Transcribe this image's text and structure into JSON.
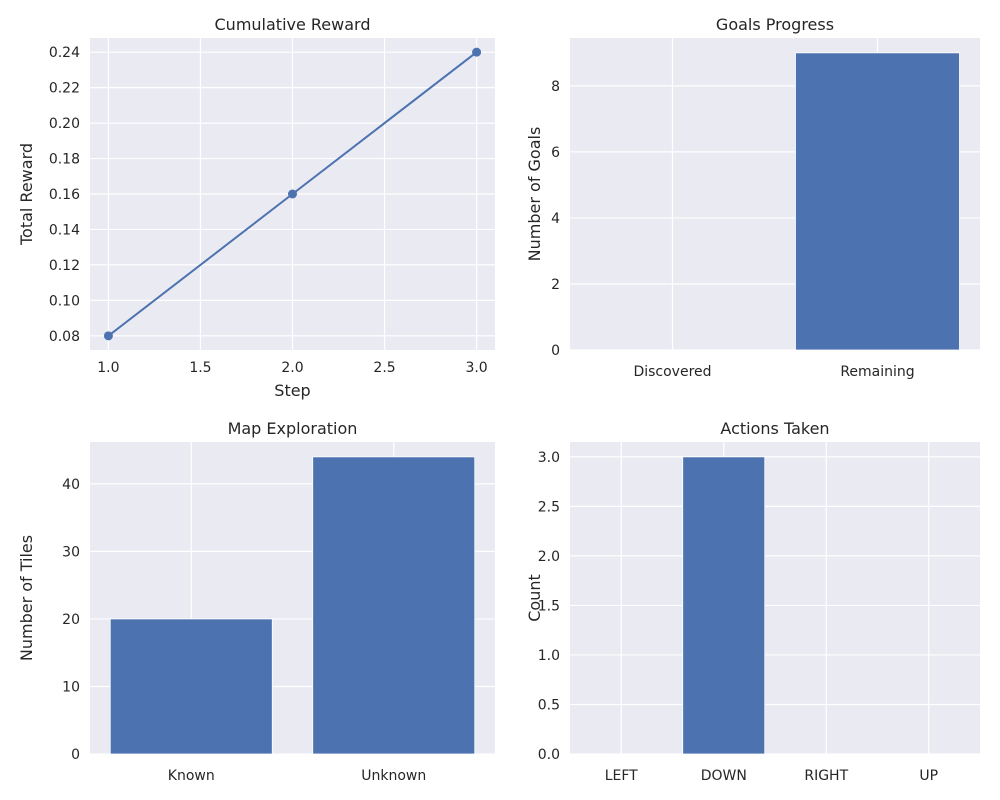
{
  "colors": {
    "series": "#4c72b0",
    "plot_background": "#eaeaf2",
    "grid": "#ffffff"
  },
  "chart_data": [
    {
      "type": "line",
      "title": "Cumulative Reward",
      "xlabel": "Step",
      "ylabel": "Total Reward",
      "x": [
        1.0,
        2.0,
        3.0
      ],
      "series": [
        {
          "values": [
            0.08,
            0.16,
            0.24
          ]
        }
      ],
      "xlim": [
        0.9,
        3.1
      ],
      "ylim": [
        0.072,
        0.248
      ],
      "xticks": [
        1.0,
        1.5,
        2.0,
        2.5,
        3.0
      ],
      "xtick_labels": [
        "1.0",
        "1.5",
        "2.0",
        "2.5",
        "3.0"
      ],
      "yticks": [
        0.08,
        0.1,
        0.12,
        0.14,
        0.16,
        0.18,
        0.2,
        0.22,
        0.24
      ],
      "ytick_labels": [
        "0.08",
        "0.10",
        "0.12",
        "0.14",
        "0.16",
        "0.18",
        "0.20",
        "0.22",
        "0.24"
      ],
      "markers": true,
      "grid": true
    },
    {
      "type": "bar",
      "title": "Goals Progress",
      "xlabel": "",
      "ylabel": "Number of Goals",
      "categories": [
        "Discovered",
        "Remaining"
      ],
      "values": [
        0,
        9
      ],
      "ylim": [
        0,
        9.45
      ],
      "yticks": [
        0,
        2,
        4,
        6,
        8
      ],
      "ytick_labels": [
        "0",
        "2",
        "4",
        "6",
        "8"
      ],
      "grid": true
    },
    {
      "type": "bar",
      "title": "Map Exploration",
      "xlabel": "",
      "ylabel": "Number of Tiles",
      "categories": [
        "Known",
        "Unknown"
      ],
      "values": [
        20,
        44
      ],
      "ylim": [
        0,
        46.2
      ],
      "yticks": [
        0,
        10,
        20,
        30,
        40
      ],
      "ytick_labels": [
        "0",
        "10",
        "20",
        "30",
        "40"
      ],
      "grid": true
    },
    {
      "type": "bar",
      "title": "Actions Taken",
      "xlabel": "",
      "ylabel": "Count",
      "categories": [
        "LEFT",
        "DOWN",
        "RIGHT",
        "UP"
      ],
      "values": [
        0,
        3,
        0,
        0
      ],
      "ylim": [
        0,
        3.15
      ],
      "yticks": [
        0.0,
        0.5,
        1.0,
        1.5,
        2.0,
        2.5,
        3.0
      ],
      "ytick_labels": [
        "0.0",
        "0.5",
        "1.0",
        "1.5",
        "2.0",
        "2.5",
        "3.0"
      ],
      "grid": true
    }
  ]
}
